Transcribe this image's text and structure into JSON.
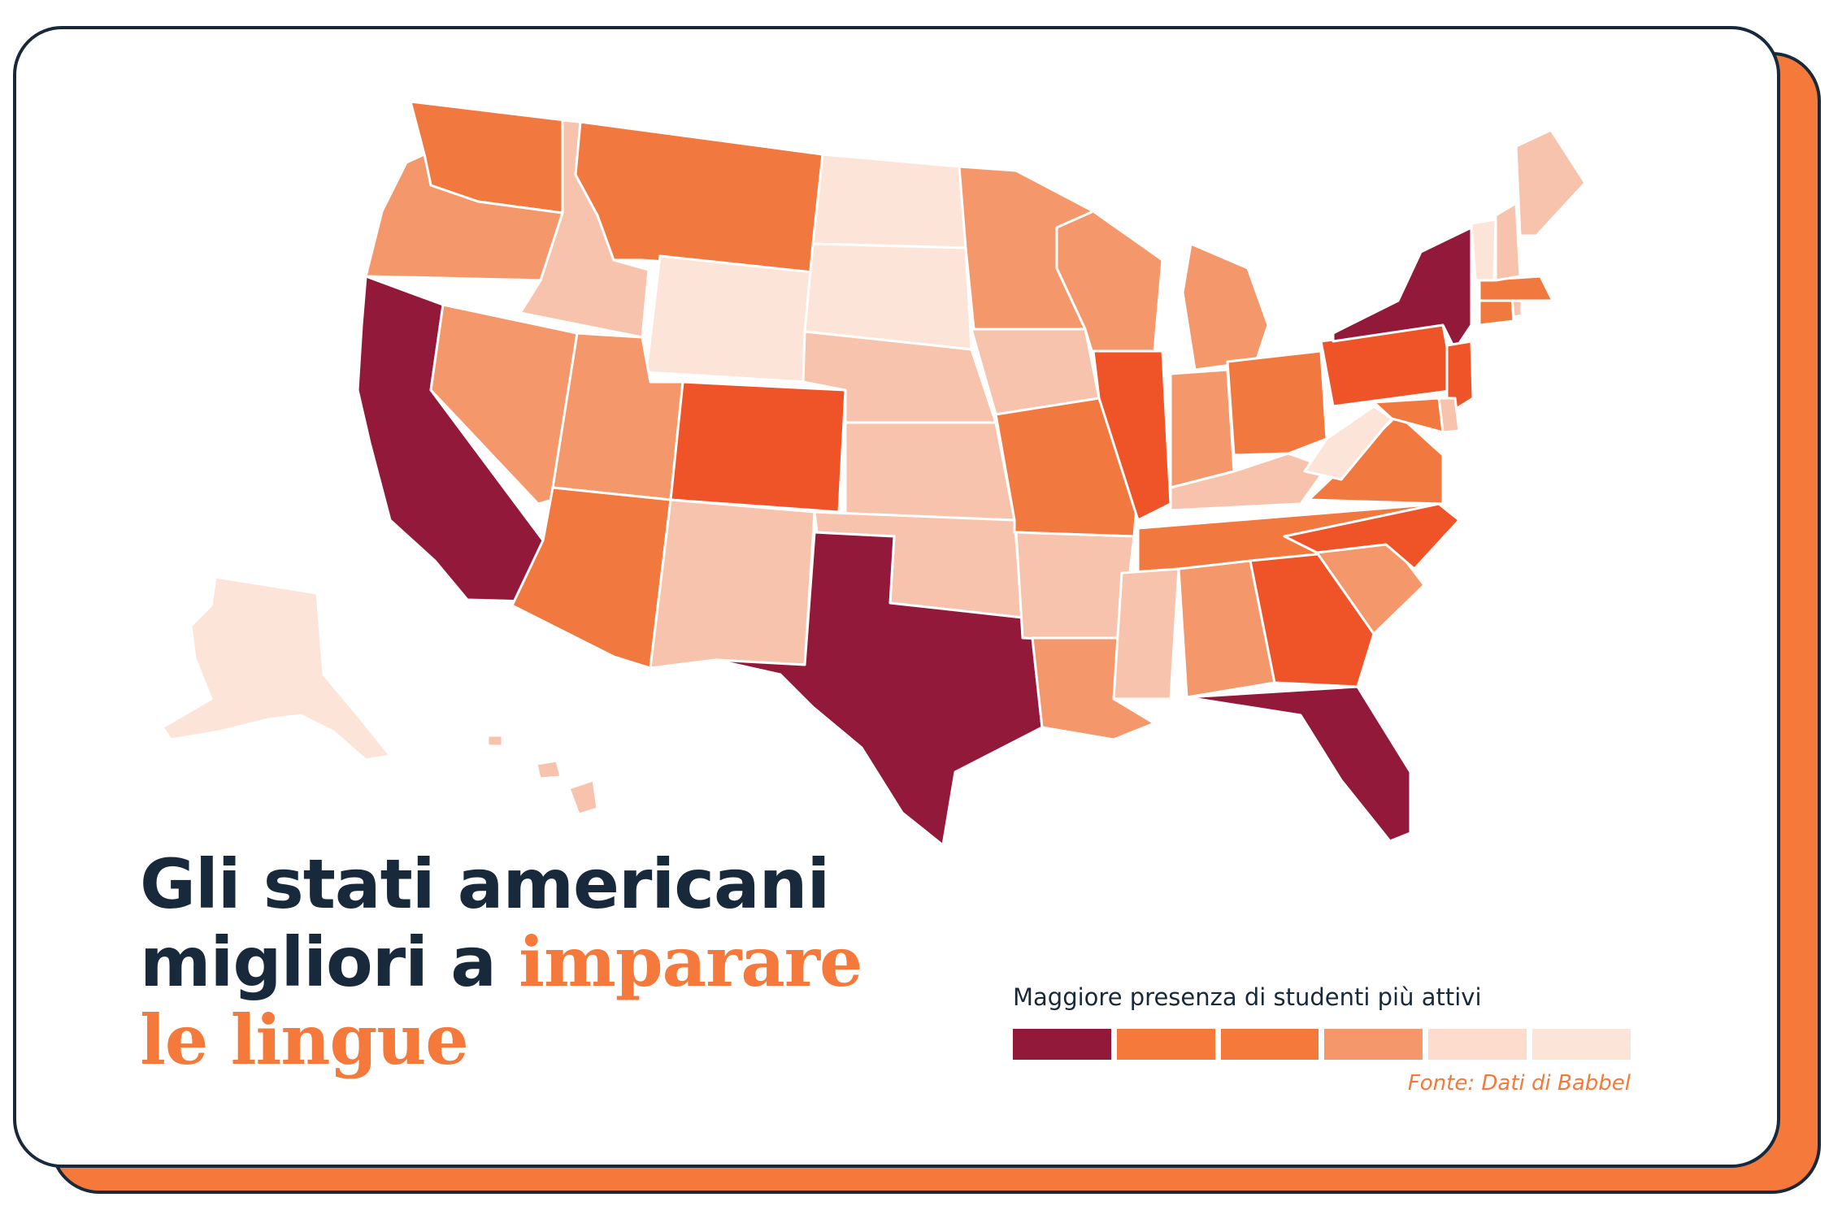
{
  "headline": {
    "line1": "Gli stati americani",
    "line2_plain": "migliori a ",
    "line2_accent": "imparare",
    "line3_accent": "le lingue"
  },
  "legend": {
    "title": "Maggiore presenza di studenti più attivi",
    "source": "Fonte: Dati di Babbel",
    "colors": [
      "#93193a",
      "#f4793b",
      "#f4793b",
      "#f4976a",
      "#fddccd",
      "#fde4d8"
    ]
  },
  "palette": {
    "level1": "#93193a",
    "level2": "#ef5429",
    "level3": "#f1783e",
    "level4": "#f4976b",
    "level5": "#f8c3ad",
    "level6": "#fde4d9",
    "accent": "#f4793b",
    "navy": "#17293b"
  },
  "states": [
    {
      "code": "WA",
      "level": 3
    },
    {
      "code": "OR",
      "level": 4
    },
    {
      "code": "CA",
      "level": 1
    },
    {
      "code": "ID",
      "level": 5
    },
    {
      "code": "NV",
      "level": 4
    },
    {
      "code": "MT",
      "level": 3
    },
    {
      "code": "WY",
      "level": 6
    },
    {
      "code": "UT",
      "level": 4
    },
    {
      "code": "AZ",
      "level": 3
    },
    {
      "code": "CO",
      "level": 2
    },
    {
      "code": "NM",
      "level": 5
    },
    {
      "code": "ND",
      "level": 6
    },
    {
      "code": "SD",
      "level": 6
    },
    {
      "code": "NE",
      "level": 5
    },
    {
      "code": "KS",
      "level": 5
    },
    {
      "code": "OK",
      "level": 5
    },
    {
      "code": "TX",
      "level": 1
    },
    {
      "code": "MN",
      "level": 4
    },
    {
      "code": "IA",
      "level": 5
    },
    {
      "code": "MO",
      "level": 3
    },
    {
      "code": "AR",
      "level": 5
    },
    {
      "code": "LA",
      "level": 4
    },
    {
      "code": "WI",
      "level": 4
    },
    {
      "code": "IL",
      "level": 2
    },
    {
      "code": "MI",
      "level": 4
    },
    {
      "code": "IN",
      "level": 4
    },
    {
      "code": "OH",
      "level": 3
    },
    {
      "code": "KY",
      "level": 5
    },
    {
      "code": "TN",
      "level": 3
    },
    {
      "code": "MS",
      "level": 5
    },
    {
      "code": "AL",
      "level": 4
    },
    {
      "code": "GA",
      "level": 2
    },
    {
      "code": "FL",
      "level": 1
    },
    {
      "code": "SC",
      "level": 4
    },
    {
      "code": "NC",
      "level": 2
    },
    {
      "code": "VA",
      "level": 3
    },
    {
      "code": "WV",
      "level": 6
    },
    {
      "code": "PA",
      "level": 2
    },
    {
      "code": "NY",
      "level": 1
    },
    {
      "code": "NJ",
      "level": 2
    },
    {
      "code": "DE",
      "level": 5
    },
    {
      "code": "MD",
      "level": 3
    },
    {
      "code": "CT",
      "level": 3
    },
    {
      "code": "RI",
      "level": 5
    },
    {
      "code": "MA",
      "level": 3
    },
    {
      "code": "VT",
      "level": 6
    },
    {
      "code": "NH",
      "level": 5
    },
    {
      "code": "ME",
      "level": 5
    },
    {
      "code": "AK",
      "level": 6
    },
    {
      "code": "HI",
      "level": 5
    }
  ]
}
